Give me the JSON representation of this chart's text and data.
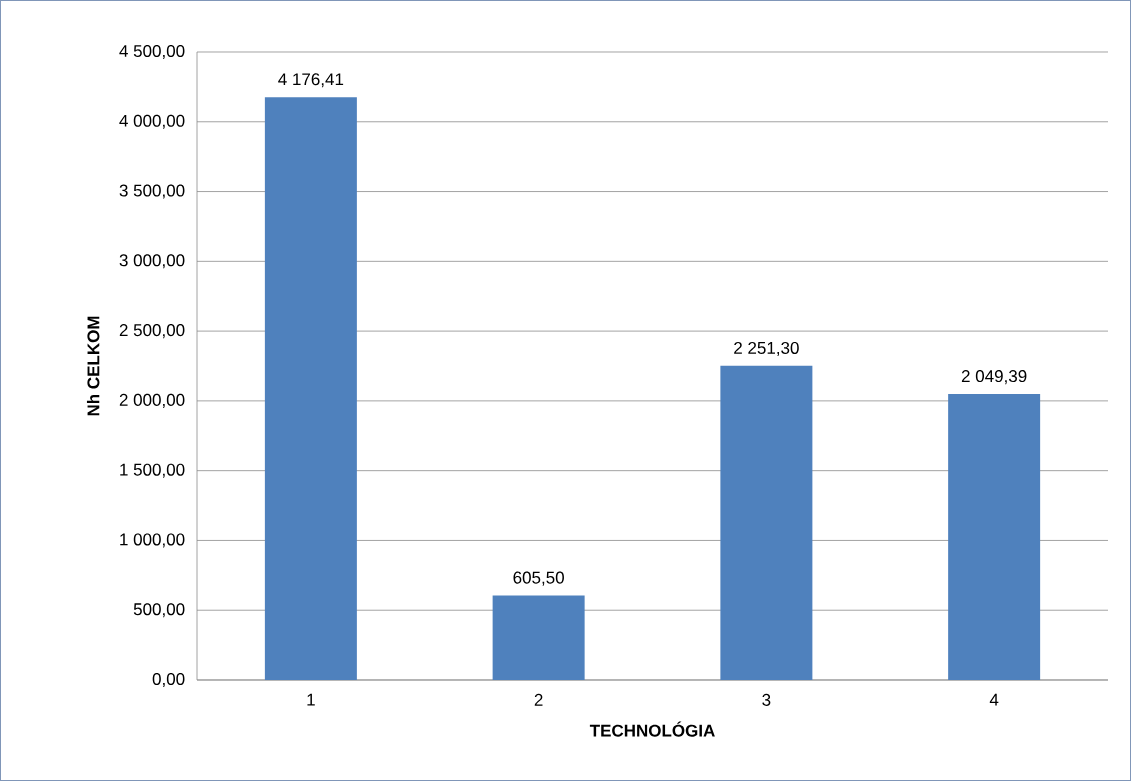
{
  "chart_data": {
    "type": "bar",
    "xlabel": "TECHNOLÓGIA",
    "ylabel": "Nh CELKOM",
    "categories": [
      "1",
      "2",
      "3",
      "4"
    ],
    "values": [
      4176.41,
      605.5,
      2251.3,
      2049.39
    ],
    "value_labels": [
      "4 176,41",
      "605,50",
      "2 251,30",
      "2 049,39"
    ],
    "color": "#4f81bd",
    "ylim": [
      0,
      4500
    ],
    "yticks": [
      {
        "value": 0,
        "label": "0,00"
      },
      {
        "value": 500,
        "label": "500,00"
      },
      {
        "value": 1000,
        "label": "1 000,00"
      },
      {
        "value": 1500,
        "label": "1 500,00"
      },
      {
        "value": 2000,
        "label": "2 000,00"
      },
      {
        "value": 2500,
        "label": "2 500,00"
      },
      {
        "value": 3000,
        "label": "3 000,00"
      },
      {
        "value": 3500,
        "label": "3 500,00"
      },
      {
        "value": 4000,
        "label": "4 000,00"
      },
      {
        "value": 4500,
        "label": "4 500,00"
      }
    ],
    "grid": "y"
  }
}
